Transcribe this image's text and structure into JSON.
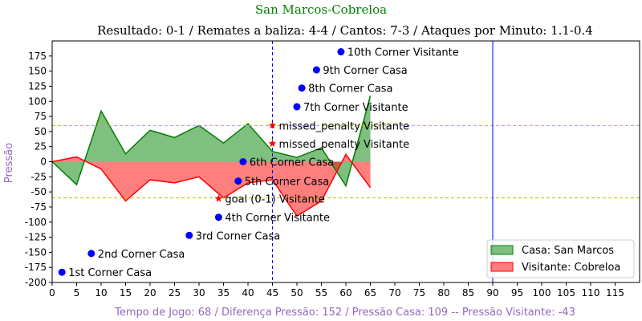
{
  "chart_data": {
    "type": "area",
    "title": "San Marcos-Cobreloa",
    "subtitle": "Resultado: 0-1 / Remates a baliza: 4-4 / Cantos: 7-3 / Ataques por Minuto: 1.1-0.4",
    "xlabel": "Tempo de Jogo: 68 / Diferença Pressão: 152 / Pressão Casa: 109 -- Pressão Visitante: -43",
    "ylabel": "Pressão",
    "xlim": [
      0,
      120
    ],
    "ylim": [
      -200,
      200
    ],
    "xticks": [
      0,
      5,
      10,
      15,
      20,
      25,
      30,
      35,
      40,
      45,
      50,
      55,
      60,
      65,
      70,
      75,
      80,
      85,
      90,
      95,
      100,
      105,
      110,
      115
    ],
    "yticks": [
      -200,
      -175,
      -150,
      -125,
      -100,
      -75,
      -50,
      -25,
      0,
      25,
      50,
      75,
      100,
      125,
      150,
      175
    ],
    "colors": {
      "title": "#008000",
      "ylabel": "#9467bd",
      "xlabel": "#9467bd",
      "home_fill": "#008000",
      "home_line": "#008000",
      "away_fill": "#ff0000",
      "away_line": "#ff0000",
      "threshold": "#bfbf00",
      "vline": "#0000ff",
      "marker": "#0000ff",
      "star": "#ff0000"
    },
    "x": [
      0,
      5,
      10,
      15,
      20,
      25,
      30,
      35,
      40,
      45,
      50,
      55,
      60,
      65
    ],
    "series": [
      {
        "name": "Casa: San Marcos",
        "values": [
          0,
          -38,
          84,
          13,
          52,
          40,
          60,
          31,
          63,
          17,
          7,
          23,
          -40,
          109
        ]
      },
      {
        "name": "Visitante: Cobreloa",
        "values": [
          0,
          8,
          -12,
          -65,
          -30,
          -35,
          -25,
          -60,
          -35,
          -30,
          -90,
          -65,
          12,
          -43
        ]
      }
    ],
    "thresholds": [
      60,
      -60
    ],
    "vlines": [
      45,
      90
    ],
    "events": [
      {
        "x": 2,
        "y": -183,
        "label": "1st Corner Casa",
        "marker": "circle"
      },
      {
        "x": 8,
        "y": -152,
        "label": "2nd Corner Casa",
        "marker": "circle"
      },
      {
        "x": 28,
        "y": -122,
        "label": "3rd Corner Casa",
        "marker": "circle"
      },
      {
        "x": 34,
        "y": -92,
        "label": "4th Corner Visitante",
        "marker": "circle"
      },
      {
        "x": 38,
        "y": -32,
        "label": "5th Corner Casa",
        "marker": "circle"
      },
      {
        "x": 39,
        "y": 0,
        "label": "6th Corner Casa",
        "marker": "circle"
      },
      {
        "x": 50,
        "y": 91,
        "label": "7th Corner Visitante",
        "marker": "circle"
      },
      {
        "x": 51,
        "y": 122,
        "label": "8th Corner Casa",
        "marker": "circle"
      },
      {
        "x": 54,
        "y": 152,
        "label": "9th Corner Casa",
        "marker": "circle"
      },
      {
        "x": 59,
        "y": 182,
        "label": "10th Corner Visitante",
        "marker": "circle"
      },
      {
        "x": 45,
        "y": 60,
        "label": "missed_penalty  Visitante",
        "marker": "star"
      },
      {
        "x": 45,
        "y": 30,
        "label": "missed_penalty  Visitante",
        "marker": "star"
      },
      {
        "x": 34,
        "y": -61,
        "label": "goal (0-1) Visitante",
        "marker": "star"
      }
    ],
    "legend": {
      "position": "bottom-right",
      "entries": [
        "Casa: San Marcos",
        "Visitante: Cobreloa"
      ]
    }
  }
}
